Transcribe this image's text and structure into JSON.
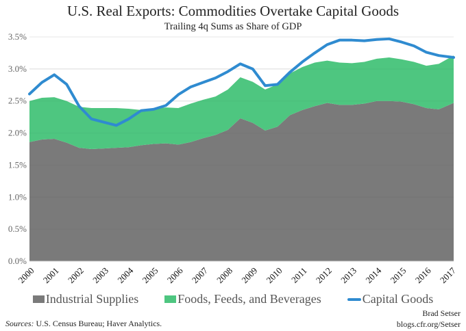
{
  "chart_data": {
    "type": "area",
    "title": "U.S. Real Exports: Commodities Overtake Capital Goods",
    "subtitle": "Trailing 4q Sums as Share of GDP",
    "xlabel": "",
    "ylabel": "",
    "xlim": [
      2000,
      2017.1
    ],
    "ylim": [
      0,
      3.5
    ],
    "yticks": [
      "0.0%",
      "0.5%",
      "1.0%",
      "1.5%",
      "2.0%",
      "2.5%",
      "3.0%",
      "3.5%"
    ],
    "xticks": [
      "2000",
      "2001",
      "2002",
      "2003",
      "2004",
      "2005",
      "2006",
      "2007",
      "2008",
      "2009",
      "2010",
      "2011",
      "2012",
      "2013",
      "2014",
      "2015",
      "2016",
      "2017"
    ],
    "grid": true,
    "legend_position": "bottom",
    "x": [
      2000.0,
      2000.5,
      2001.0,
      2001.5,
      2002.0,
      2002.5,
      2003.0,
      2003.5,
      2004.0,
      2004.5,
      2005.0,
      2005.5,
      2006.0,
      2006.5,
      2007.0,
      2007.5,
      2008.0,
      2008.5,
      2009.0,
      2009.5,
      2010.0,
      2010.5,
      2011.0,
      2011.5,
      2012.0,
      2012.5,
      2013.0,
      2013.5,
      2014.0,
      2014.5,
      2015.0,
      2015.5,
      2016.0,
      2016.5,
      2017.1
    ],
    "series": [
      {
        "name": "Industrial Supplies",
        "kind": "stacked-area",
        "color": "#7a7a7a",
        "values": [
          1.86,
          1.9,
          1.91,
          1.85,
          1.77,
          1.75,
          1.76,
          1.77,
          1.78,
          1.81,
          1.83,
          1.84,
          1.82,
          1.86,
          1.92,
          1.97,
          2.05,
          2.23,
          2.16,
          2.04,
          2.1,
          2.28,
          2.36,
          2.42,
          2.47,
          2.44,
          2.44,
          2.46,
          2.5,
          2.5,
          2.49,
          2.45,
          2.39,
          2.37,
          2.47
        ]
      },
      {
        "name": "Foods, Feeds, and Beverages",
        "kind": "stacked-area",
        "color": "#4ec680",
        "values": [
          0.64,
          0.65,
          0.65,
          0.65,
          0.64,
          0.64,
          0.63,
          0.62,
          0.6,
          0.55,
          0.55,
          0.56,
          0.57,
          0.6,
          0.6,
          0.6,
          0.63,
          0.64,
          0.64,
          0.64,
          0.66,
          0.65,
          0.67,
          0.68,
          0.66,
          0.66,
          0.65,
          0.65,
          0.66,
          0.68,
          0.66,
          0.66,
          0.66,
          0.71,
          0.74
        ]
      },
      {
        "name": "Capital Goods",
        "kind": "line",
        "color": "#2f8bd0",
        "values": [
          2.61,
          2.79,
          2.91,
          2.76,
          2.42,
          2.22,
          2.17,
          2.12,
          2.22,
          2.35,
          2.37,
          2.43,
          2.6,
          2.72,
          2.79,
          2.86,
          2.96,
          3.08,
          3.0,
          2.74,
          2.76,
          2.95,
          3.11,
          3.25,
          3.38,
          3.45,
          3.45,
          3.44,
          3.46,
          3.47,
          3.42,
          3.36,
          3.26,
          3.21,
          3.18
        ]
      }
    ]
  },
  "footer": {
    "sources_label": "Sources:",
    "sources_text": " U.S. Census Bureau; Haver Analytics.",
    "author": "Brad Setser",
    "site": "blogs.cfr.org/Setser"
  }
}
